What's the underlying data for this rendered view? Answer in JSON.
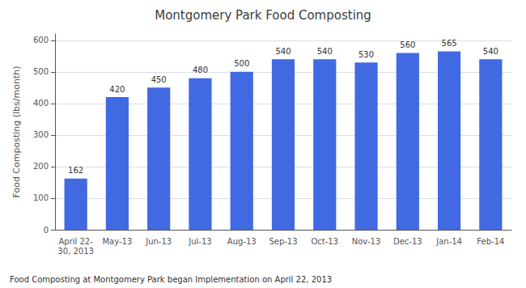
{
  "chart_data": {
    "type": "bar",
    "title": "Montgomery Park Food Composting",
    "ylabel": "Food Composting (lbs/month)",
    "categories": [
      "April 22-\n30, 2013",
      "May-13",
      "Jun-13",
      "Jul-13",
      "Aug-13",
      "Sep-13",
      "Oct-13",
      "Nov-13",
      "Dec-13",
      "Jan-14",
      "Feb-14"
    ],
    "values": [
      162,
      420,
      450,
      480,
      500,
      540,
      540,
      530,
      560,
      565,
      540
    ],
    "color": "#4169e1",
    "ylim": [
      0,
      620
    ],
    "yticks": [
      0,
      100,
      200,
      300,
      400,
      500,
      600
    ],
    "grid": true,
    "data_labels": true,
    "annotation": "Food Composting at Montgomery Park began Implementation on April 22, 2013"
  }
}
